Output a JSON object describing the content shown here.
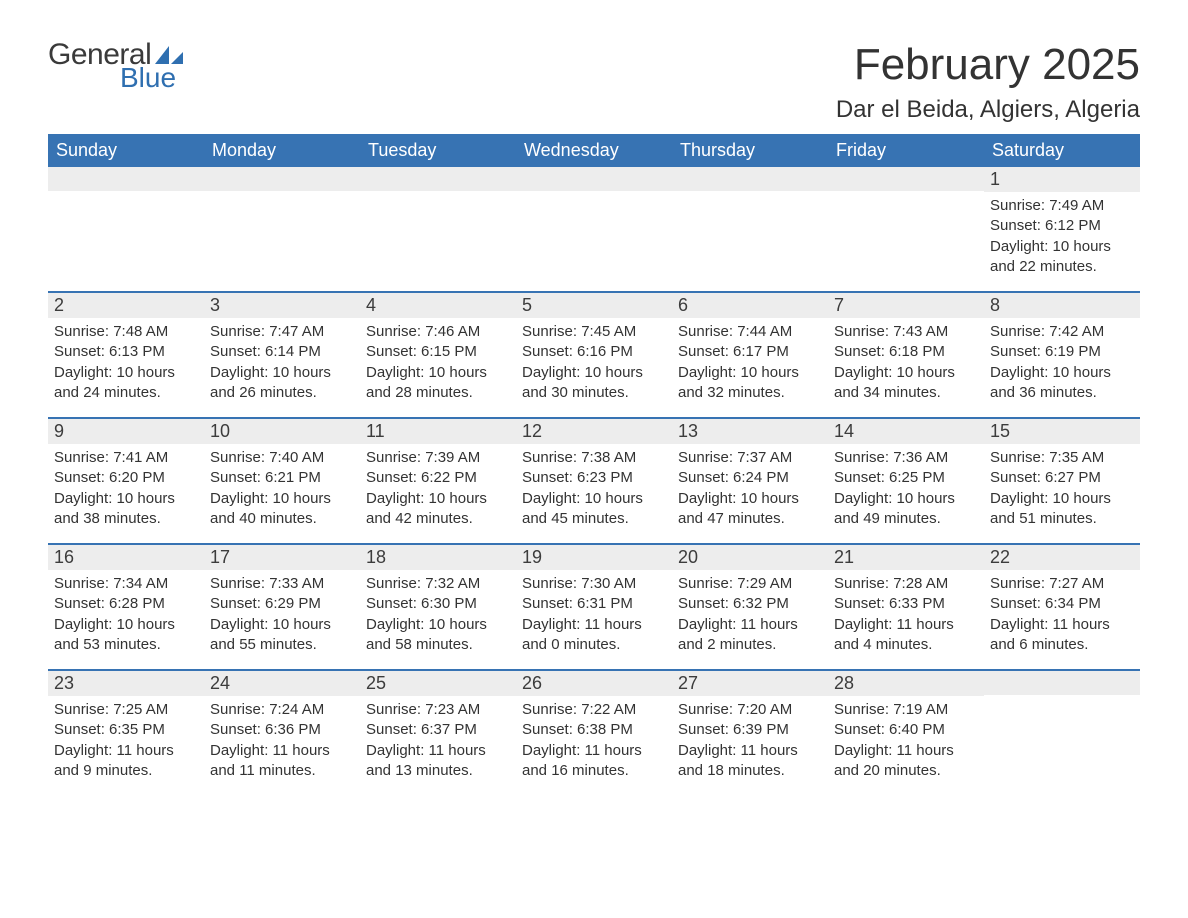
{
  "brand": {
    "word1": "General",
    "word2": "Blue",
    "word1_color": "#3a3a3a",
    "word2_color": "#2f6fb0",
    "icon_color": "#2f6fb0"
  },
  "header": {
    "month_title": "February 2025",
    "location": "Dar el Beida, Algiers, Algeria"
  },
  "colors": {
    "header_bg": "#3773b3",
    "header_text": "#ffffff",
    "daynum_bg": "#ededed",
    "week_divider": "#3773b3",
    "body_text": "#333333",
    "page_bg": "#ffffff"
  },
  "day_names": [
    "Sunday",
    "Monday",
    "Tuesday",
    "Wednesday",
    "Thursday",
    "Friday",
    "Saturday"
  ],
  "weeks": [
    [
      {
        "blank": true
      },
      {
        "blank": true
      },
      {
        "blank": true
      },
      {
        "blank": true
      },
      {
        "blank": true
      },
      {
        "blank": true
      },
      {
        "day": 1,
        "sunrise": "7:49 AM",
        "sunset": "6:12 PM",
        "daylight": "10 hours and 22 minutes."
      }
    ],
    [
      {
        "day": 2,
        "sunrise": "7:48 AM",
        "sunset": "6:13 PM",
        "daylight": "10 hours and 24 minutes."
      },
      {
        "day": 3,
        "sunrise": "7:47 AM",
        "sunset": "6:14 PM",
        "daylight": "10 hours and 26 minutes."
      },
      {
        "day": 4,
        "sunrise": "7:46 AM",
        "sunset": "6:15 PM",
        "daylight": "10 hours and 28 minutes."
      },
      {
        "day": 5,
        "sunrise": "7:45 AM",
        "sunset": "6:16 PM",
        "daylight": "10 hours and 30 minutes."
      },
      {
        "day": 6,
        "sunrise": "7:44 AM",
        "sunset": "6:17 PM",
        "daylight": "10 hours and 32 minutes."
      },
      {
        "day": 7,
        "sunrise": "7:43 AM",
        "sunset": "6:18 PM",
        "daylight": "10 hours and 34 minutes."
      },
      {
        "day": 8,
        "sunrise": "7:42 AM",
        "sunset": "6:19 PM",
        "daylight": "10 hours and 36 minutes."
      }
    ],
    [
      {
        "day": 9,
        "sunrise": "7:41 AM",
        "sunset": "6:20 PM",
        "daylight": "10 hours and 38 minutes."
      },
      {
        "day": 10,
        "sunrise": "7:40 AM",
        "sunset": "6:21 PM",
        "daylight": "10 hours and 40 minutes."
      },
      {
        "day": 11,
        "sunrise": "7:39 AM",
        "sunset": "6:22 PM",
        "daylight": "10 hours and 42 minutes."
      },
      {
        "day": 12,
        "sunrise": "7:38 AM",
        "sunset": "6:23 PM",
        "daylight": "10 hours and 45 minutes."
      },
      {
        "day": 13,
        "sunrise": "7:37 AM",
        "sunset": "6:24 PM",
        "daylight": "10 hours and 47 minutes."
      },
      {
        "day": 14,
        "sunrise": "7:36 AM",
        "sunset": "6:25 PM",
        "daylight": "10 hours and 49 minutes."
      },
      {
        "day": 15,
        "sunrise": "7:35 AM",
        "sunset": "6:27 PM",
        "daylight": "10 hours and 51 minutes."
      }
    ],
    [
      {
        "day": 16,
        "sunrise": "7:34 AM",
        "sunset": "6:28 PM",
        "daylight": "10 hours and 53 minutes."
      },
      {
        "day": 17,
        "sunrise": "7:33 AM",
        "sunset": "6:29 PM",
        "daylight": "10 hours and 55 minutes."
      },
      {
        "day": 18,
        "sunrise": "7:32 AM",
        "sunset": "6:30 PM",
        "daylight": "10 hours and 58 minutes."
      },
      {
        "day": 19,
        "sunrise": "7:30 AM",
        "sunset": "6:31 PM",
        "daylight": "11 hours and 0 minutes."
      },
      {
        "day": 20,
        "sunrise": "7:29 AM",
        "sunset": "6:32 PM",
        "daylight": "11 hours and 2 minutes."
      },
      {
        "day": 21,
        "sunrise": "7:28 AM",
        "sunset": "6:33 PM",
        "daylight": "11 hours and 4 minutes."
      },
      {
        "day": 22,
        "sunrise": "7:27 AM",
        "sunset": "6:34 PM",
        "daylight": "11 hours and 6 minutes."
      }
    ],
    [
      {
        "day": 23,
        "sunrise": "7:25 AM",
        "sunset": "6:35 PM",
        "daylight": "11 hours and 9 minutes."
      },
      {
        "day": 24,
        "sunrise": "7:24 AM",
        "sunset": "6:36 PM",
        "daylight": "11 hours and 11 minutes."
      },
      {
        "day": 25,
        "sunrise": "7:23 AM",
        "sunset": "6:37 PM",
        "daylight": "11 hours and 13 minutes."
      },
      {
        "day": 26,
        "sunrise": "7:22 AM",
        "sunset": "6:38 PM",
        "daylight": "11 hours and 16 minutes."
      },
      {
        "day": 27,
        "sunrise": "7:20 AM",
        "sunset": "6:39 PM",
        "daylight": "11 hours and 18 minutes."
      },
      {
        "day": 28,
        "sunrise": "7:19 AM",
        "sunset": "6:40 PM",
        "daylight": "11 hours and 20 minutes."
      },
      {
        "blank": true
      }
    ]
  ],
  "labels": {
    "sunrise_prefix": "Sunrise: ",
    "sunset_prefix": "Sunset: ",
    "daylight_prefix": "Daylight: "
  },
  "typography": {
    "month_title_fontsize": 44,
    "location_fontsize": 24,
    "dayhead_fontsize": 18,
    "daynum_fontsize": 18,
    "body_fontsize": 15,
    "font_family": "Arial, Helvetica, sans-serif"
  }
}
